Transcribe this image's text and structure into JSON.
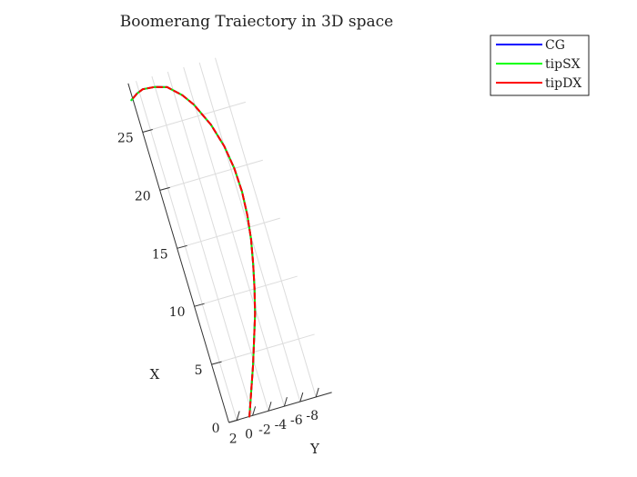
{
  "chart_data": {
    "type": "line",
    "title": "Boomerang Traiectory in 3D space",
    "xlabel": "X",
    "ylabel": "Y",
    "x_axis": {
      "ticks": [
        0,
        5,
        10,
        15,
        20,
        25
      ],
      "tick_labels": [
        "0",
        "5",
        "10",
        "15",
        "20",
        "25"
      ]
    },
    "y_axis": {
      "ticks": [
        2,
        0,
        -2,
        -4,
        -6,
        -8
      ],
      "tick_labels": [
        "2",
        "0",
        "-2",
        "-4",
        "-6",
        "-8"
      ]
    },
    "grid": true,
    "legend": {
      "placement": "top-right",
      "entries": [
        "CG",
        "tipSX",
        "tipDX"
      ]
    },
    "series": [
      {
        "name": "CG",
        "color": "#0000ff",
        "points": [
          {
            "x": 0.0,
            "y": 0.4
          },
          {
            "x": 2.0,
            "y": -0.7
          },
          {
            "x": 4.0,
            "y": -1.8
          },
          {
            "x": 6.0,
            "y": -2.8
          },
          {
            "x": 8.0,
            "y": -3.8
          },
          {
            "x": 10.0,
            "y": -4.6
          },
          {
            "x": 12.0,
            "y": -5.3
          },
          {
            "x": 14.0,
            "y": -5.9
          },
          {
            "x": 16.0,
            "y": -6.3
          },
          {
            "x": 18.0,
            "y": -6.5
          },
          {
            "x": 20.0,
            "y": -6.4
          },
          {
            "x": 22.0,
            "y": -6.0
          },
          {
            "x": 24.0,
            "y": -5.2
          },
          {
            "x": 26.0,
            "y": -3.9
          },
          {
            "x": 27.0,
            "y": -2.9
          },
          {
            "x": 28.0,
            "y": -1.4
          },
          {
            "x": 28.3,
            "y": 0.0
          },
          {
            "x": 28.4,
            "y": 1.5
          },
          {
            "x": 28.2,
            "y": 2.3
          },
          {
            "x": 27.8,
            "y": 3.2
          }
        ]
      },
      {
        "name": "tipSX",
        "color": "#00ff00",
        "points": [
          {
            "x": 0.0,
            "y": 0.4
          },
          {
            "x": 2.0,
            "y": -0.7
          },
          {
            "x": 4.0,
            "y": -1.8
          },
          {
            "x": 6.0,
            "y": -2.8
          },
          {
            "x": 8.0,
            "y": -3.8
          },
          {
            "x": 10.0,
            "y": -4.6
          },
          {
            "x": 12.0,
            "y": -5.3
          },
          {
            "x": 14.0,
            "y": -5.9
          },
          {
            "x": 16.0,
            "y": -6.3
          },
          {
            "x": 18.0,
            "y": -6.5
          },
          {
            "x": 20.0,
            "y": -6.4
          },
          {
            "x": 22.0,
            "y": -6.0
          },
          {
            "x": 24.0,
            "y": -5.2
          },
          {
            "x": 26.0,
            "y": -3.9
          },
          {
            "x": 27.0,
            "y": -2.9
          },
          {
            "x": 28.0,
            "y": -1.4
          },
          {
            "x": 28.3,
            "y": 0.0
          },
          {
            "x": 28.4,
            "y": 1.5
          },
          {
            "x": 28.2,
            "y": 2.3
          },
          {
            "x": 27.8,
            "y": 3.2
          }
        ]
      },
      {
        "name": "tipDX",
        "color": "#ff0000",
        "points": [
          {
            "x": 0.0,
            "y": 0.4
          },
          {
            "x": 2.0,
            "y": -0.7
          },
          {
            "x": 4.0,
            "y": -1.8
          },
          {
            "x": 6.0,
            "y": -2.8
          },
          {
            "x": 8.0,
            "y": -3.8
          },
          {
            "x": 10.0,
            "y": -4.6
          },
          {
            "x": 12.0,
            "y": -5.3
          },
          {
            "x": 14.0,
            "y": -5.9
          },
          {
            "x": 16.0,
            "y": -6.3
          },
          {
            "x": 18.0,
            "y": -6.5
          },
          {
            "x": 20.0,
            "y": -6.4
          },
          {
            "x": 22.0,
            "y": -6.0
          },
          {
            "x": 24.0,
            "y": -5.2
          },
          {
            "x": 26.0,
            "y": -3.9
          },
          {
            "x": 27.0,
            "y": -2.9
          },
          {
            "x": 28.0,
            "y": -1.4
          },
          {
            "x": 28.3,
            "y": 0.0
          },
          {
            "x": 28.4,
            "y": 1.5
          },
          {
            "x": 28.2,
            "y": 2.3
          },
          {
            "x": 27.8,
            "y": 3.2
          }
        ]
      }
    ]
  }
}
